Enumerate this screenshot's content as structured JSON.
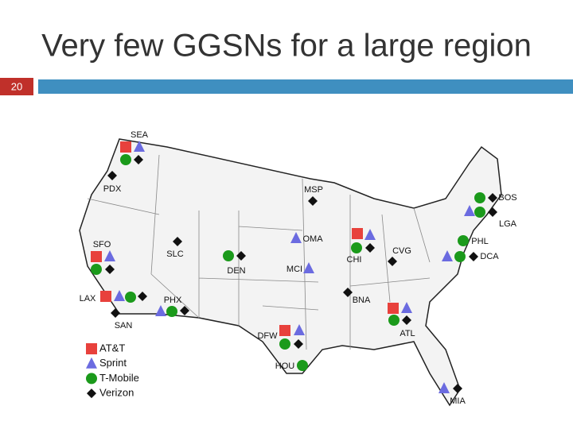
{
  "header": {
    "title": "Very few GGSNs for a large region",
    "slide_number": "20"
  },
  "map": {
    "cities": [
      "SEA",
      "PDX",
      "SFO",
      "LAX",
      "SAN",
      "SLC",
      "PHX",
      "DEN",
      "DFW",
      "HOU",
      "MSP",
      "OMA",
      "MCI",
      "CHI",
      "CVG",
      "BNA",
      "ATL",
      "MIA",
      "BOS",
      "LGA",
      "PHL",
      "DCA"
    ]
  },
  "legend": {
    "items": [
      "AT&T",
      "Sprint",
      "T-Mobile",
      "Verizon"
    ]
  }
}
